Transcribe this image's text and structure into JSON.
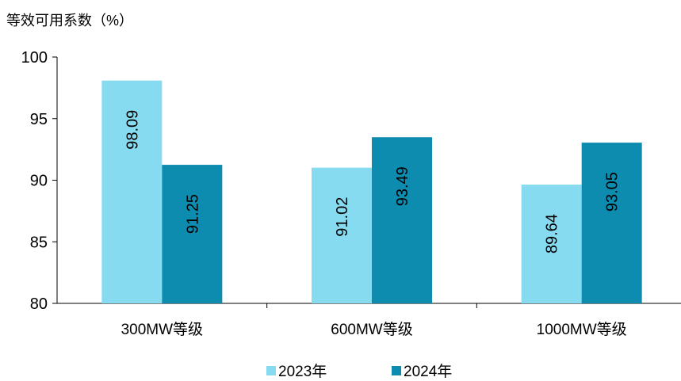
{
  "chart_data": {
    "type": "bar",
    "ylabel": "等效可用系数（%）",
    "categories": [
      "300MW等级",
      "600MW等级",
      "1000MW等级"
    ],
    "series": [
      {
        "name": "2023年",
        "values": [
          98.09,
          91.02,
          89.64
        ],
        "color": "#87DBF0"
      },
      {
        "name": "2024年",
        "values": [
          91.25,
          93.49,
          93.05
        ],
        "color": "#0E8CB0"
      }
    ],
    "ylim": [
      80,
      100
    ],
    "yticks": [
      "80",
      "85",
      "90",
      "95",
      "100"
    ],
    "data_labels": [
      [
        "98.09",
        "91.02",
        "89.64"
      ],
      [
        "91.25",
        "93.49",
        "93.05"
      ]
    ],
    "legend_position": "bottom",
    "grid": false
  }
}
